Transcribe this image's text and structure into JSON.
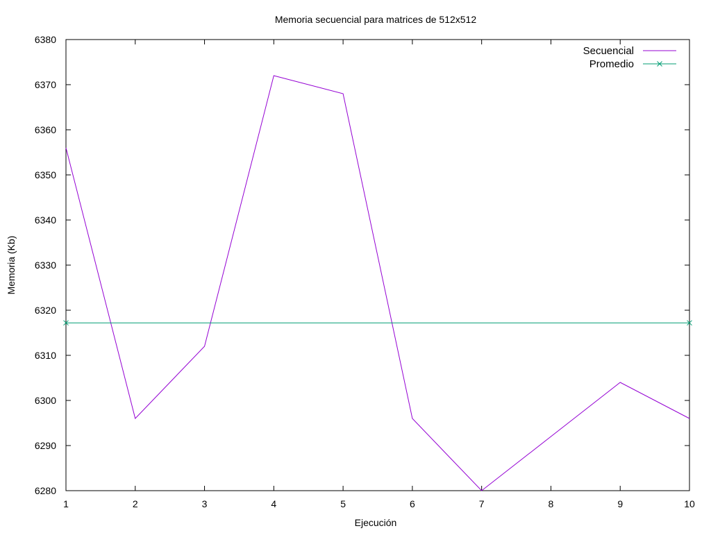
{
  "chart_data": {
    "type": "line",
    "title": "Memoria secuencial para matrices de 512x512",
    "xlabel": "Ejecución",
    "ylabel": "Memoria (Kb)",
    "xlim": [
      1,
      10
    ],
    "ylim": [
      6280,
      6380
    ],
    "x_ticks": [
      "1",
      "2",
      "3",
      "4",
      "5",
      "6",
      "7",
      "8",
      "9",
      "10"
    ],
    "y_ticks": [
      "6280",
      "6290",
      "6300",
      "6310",
      "6320",
      "6330",
      "6340",
      "6350",
      "6360",
      "6370",
      "6380"
    ],
    "grid": false,
    "legend_position": "top-right",
    "series": [
      {
        "name": "Secuencial",
        "color": "#9400d3",
        "marker": "none",
        "x": [
          1,
          2,
          3,
          4,
          5,
          6,
          7,
          8,
          9,
          10
        ],
        "y": [
          6356,
          6296,
          6312,
          6372,
          6368,
          6296,
          6280,
          6292,
          6304,
          6296
        ]
      },
      {
        "name": "Promedio",
        "color": "#009e73",
        "marker": "x",
        "x": [
          1,
          10
        ],
        "y": [
          6317.2,
          6317.2
        ]
      }
    ]
  }
}
